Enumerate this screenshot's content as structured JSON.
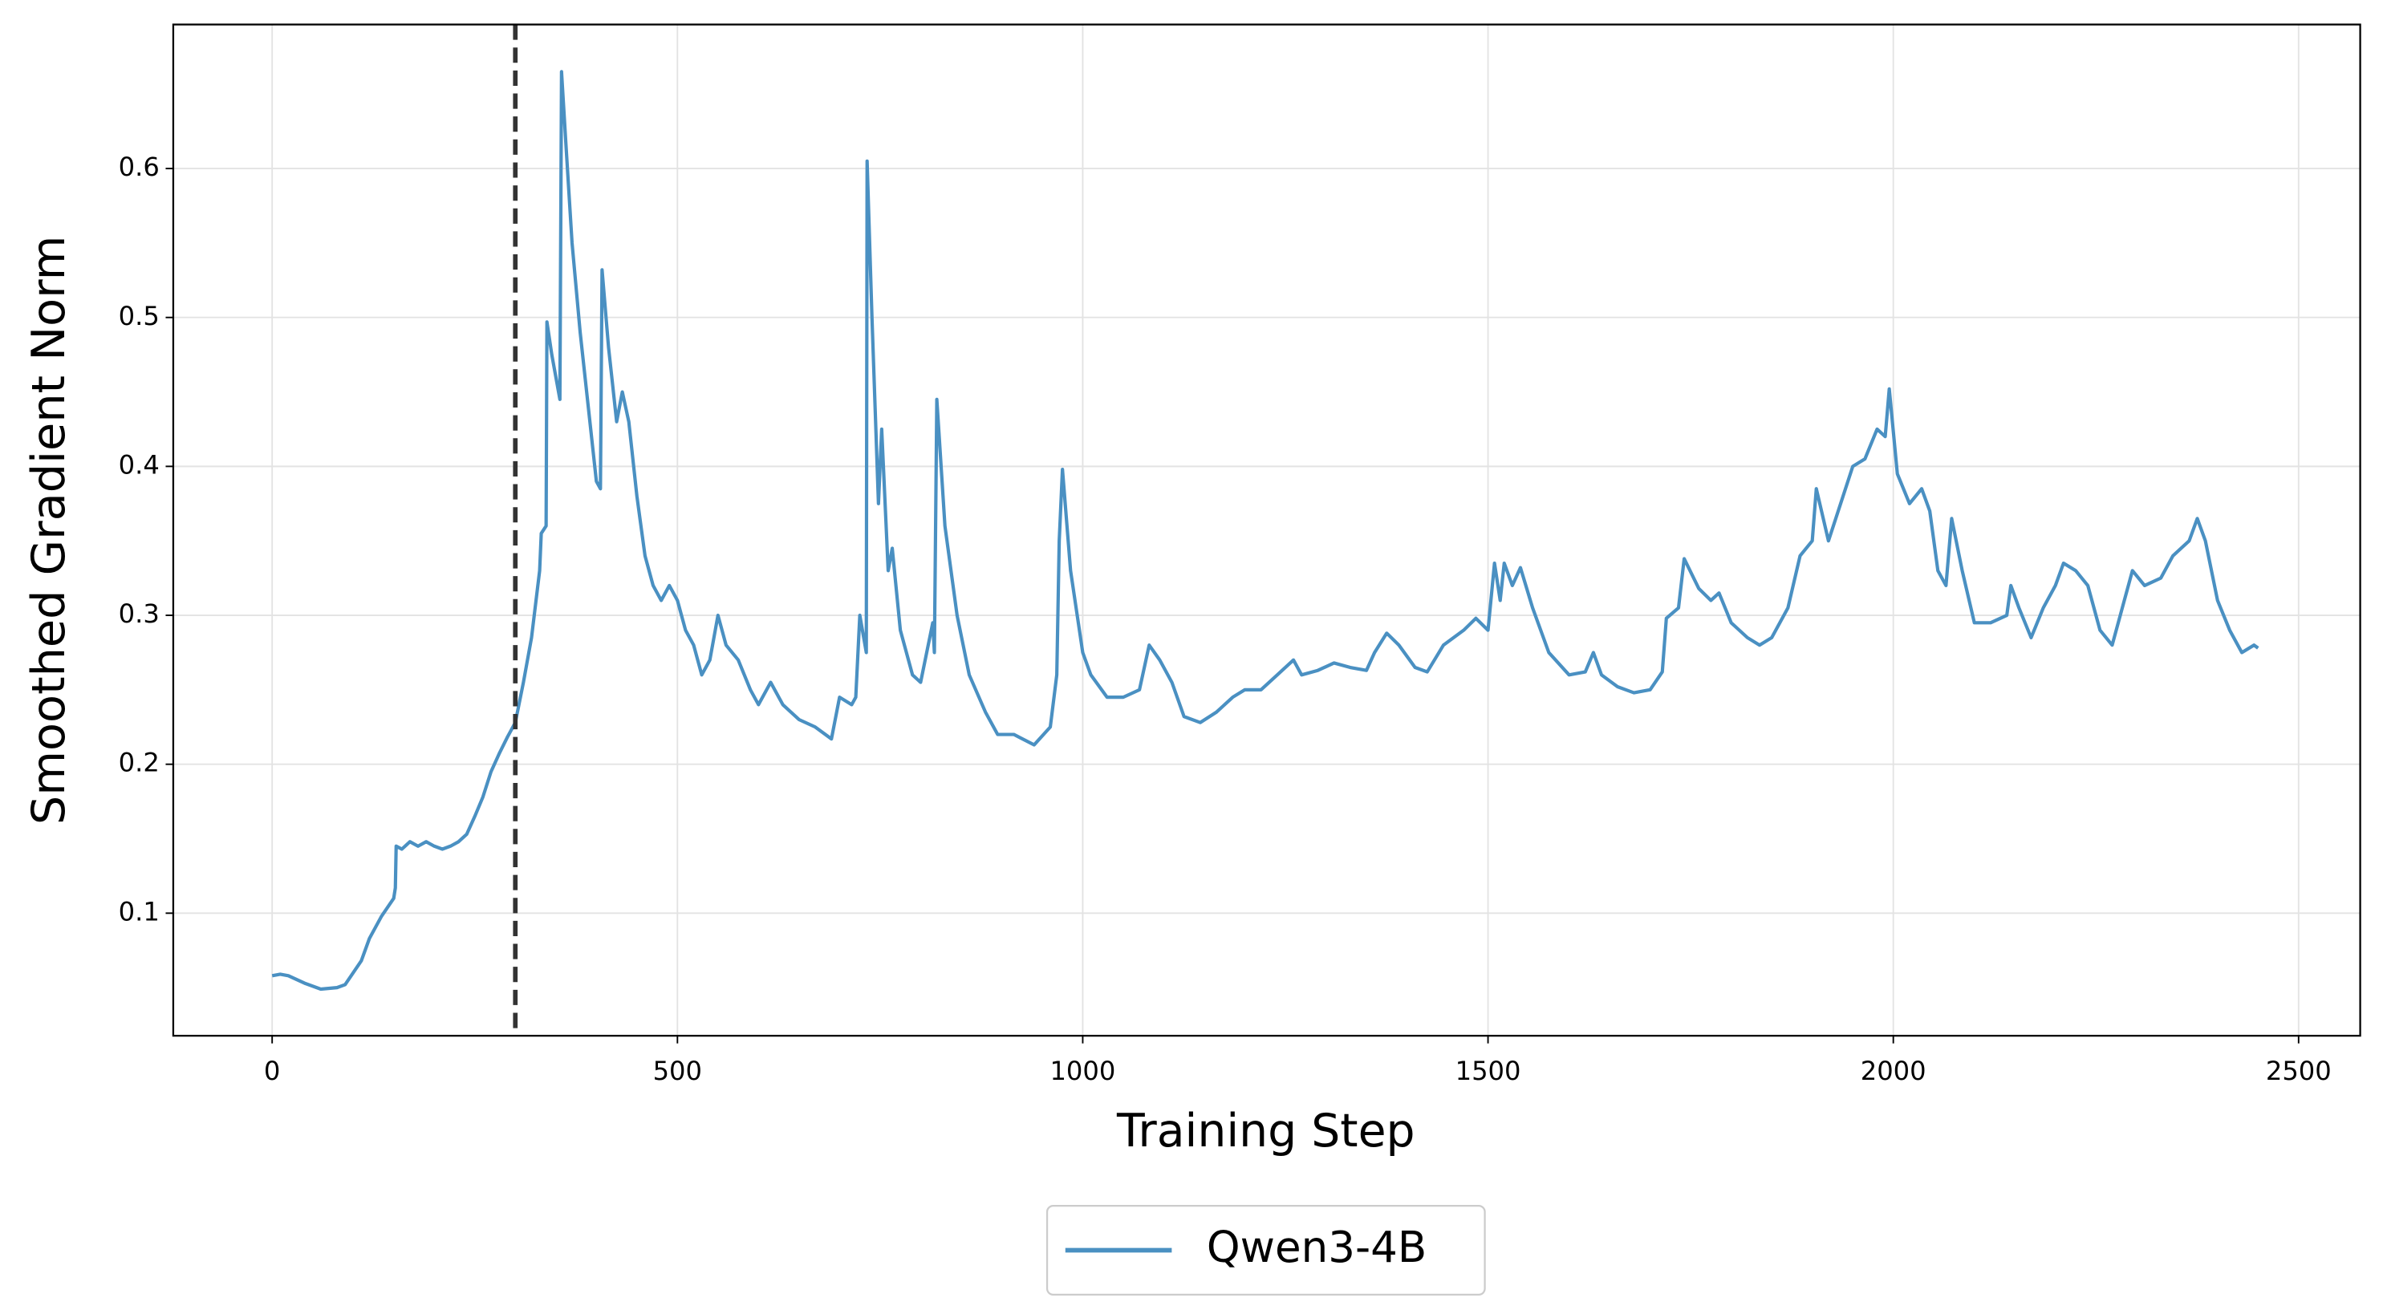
{
  "chart_data": {
    "type": "line",
    "x_label": "Training Step",
    "y_label": "Smoothed Gradient Norm",
    "xlim": [
      -122,
      2576
    ],
    "ylim": [
      0.0177,
      0.6967
    ],
    "xticks": [
      0,
      500,
      1000,
      1500,
      2000,
      2500
    ],
    "yticks": [
      0.1,
      0.2,
      0.3,
      0.4,
      0.5,
      0.6
    ],
    "grid": true,
    "legend": "below",
    "vlines": [
      300
    ],
    "x": [
      0,
      10,
      20,
      40,
      60,
      80,
      90,
      100,
      110,
      120,
      135,
      150,
      152,
      153,
      160,
      170,
      180,
      190,
      200,
      210,
      220,
      230,
      240,
      250,
      260,
      270,
      280,
      290,
      300,
      310,
      320,
      330,
      332,
      338,
      339,
      345,
      355,
      357,
      362,
      370,
      380,
      390,
      400,
      405,
      407,
      415,
      425,
      432,
      440,
      450,
      460,
      470,
      480,
      490,
      500,
      510,
      520,
      530,
      540,
      550,
      560,
      575,
      590,
      600,
      615,
      630,
      650,
      670,
      690,
      700,
      715,
      720,
      725,
      733,
      734,
      740,
      748,
      752,
      760,
      765,
      775,
      790,
      800,
      815,
      817,
      820,
      830,
      845,
      860,
      880,
      895,
      915,
      940,
      960,
      968,
      971,
      975,
      985,
      1000,
      1010,
      1030,
      1050,
      1070,
      1082,
      1095,
      1110,
      1125,
      1145,
      1165,
      1185,
      1200,
      1220,
      1240,
      1260,
      1270,
      1290,
      1310,
      1330,
      1350,
      1360,
      1375,
      1390,
      1410,
      1425,
      1445,
      1470,
      1485,
      1500,
      1508,
      1515,
      1520,
      1530,
      1540,
      1555,
      1575,
      1600,
      1620,
      1630,
      1640,
      1660,
      1680,
      1700,
      1715,
      1720,
      1735,
      1742,
      1760,
      1775,
      1785,
      1800,
      1820,
      1835,
      1850,
      1870,
      1885,
      1900,
      1905,
      1920,
      1935,
      1950,
      1965,
      1980,
      1990,
      1995,
      2005,
      2020,
      2035,
      2045,
      2055,
      2065,
      2072,
      2085,
      2100,
      2120,
      2140,
      2145,
      2155,
      2170,
      2185,
      2200,
      2210,
      2225,
      2240,
      2255,
      2270,
      2285,
      2295,
      2310,
      2330,
      2345,
      2365,
      2375,
      2385,
      2400,
      2415,
      2430,
      2445,
      2450
    ],
    "series": [
      {
        "name": "Qwen3-4B",
        "color": "#4a90c2",
        "values": [
          0.058,
          0.059,
          0.058,
          0.053,
          0.049,
          0.05,
          0.052,
          0.06,
          0.068,
          0.083,
          0.098,
          0.11,
          0.117,
          0.145,
          0.143,
          0.148,
          0.145,
          0.148,
          0.145,
          0.143,
          0.145,
          0.148,
          0.153,
          0.165,
          0.178,
          0.195,
          0.207,
          0.218,
          0.228,
          0.255,
          0.285,
          0.33,
          0.355,
          0.36,
          0.497,
          0.475,
          0.445,
          0.665,
          0.62,
          0.55,
          0.49,
          0.44,
          0.39,
          0.385,
          0.532,
          0.48,
          0.43,
          0.45,
          0.43,
          0.38,
          0.34,
          0.32,
          0.31,
          0.32,
          0.31,
          0.29,
          0.28,
          0.26,
          0.27,
          0.3,
          0.28,
          0.27,
          0.25,
          0.24,
          0.255,
          0.24,
          0.23,
          0.225,
          0.217,
          0.245,
          0.24,
          0.245,
          0.3,
          0.275,
          0.605,
          0.5,
          0.375,
          0.425,
          0.33,
          0.345,
          0.29,
          0.26,
          0.255,
          0.295,
          0.275,
          0.445,
          0.36,
          0.3,
          0.26,
          0.235,
          0.22,
          0.22,
          0.213,
          0.225,
          0.26,
          0.35,
          0.398,
          0.33,
          0.275,
          0.26,
          0.245,
          0.245,
          0.25,
          0.28,
          0.27,
          0.255,
          0.232,
          0.228,
          0.235,
          0.245,
          0.25,
          0.25,
          0.26,
          0.27,
          0.26,
          0.263,
          0.268,
          0.265,
          0.263,
          0.275,
          0.288,
          0.28,
          0.265,
          0.262,
          0.28,
          0.29,
          0.298,
          0.29,
          0.335,
          0.31,
          0.335,
          0.32,
          0.332,
          0.305,
          0.275,
          0.26,
          0.262,
          0.275,
          0.26,
          0.252,
          0.248,
          0.25,
          0.262,
          0.298,
          0.305,
          0.338,
          0.318,
          0.31,
          0.315,
          0.295,
          0.285,
          0.28,
          0.285,
          0.305,
          0.34,
          0.35,
          0.385,
          0.35,
          0.375,
          0.4,
          0.405,
          0.425,
          0.42,
          0.452,
          0.395,
          0.375,
          0.385,
          0.37,
          0.33,
          0.32,
          0.365,
          0.33,
          0.295,
          0.295,
          0.3,
          0.32,
          0.305,
          0.285,
          0.305,
          0.32,
          0.335,
          0.33,
          0.32,
          0.29,
          0.28,
          0.31,
          0.33,
          0.32,
          0.325,
          0.34,
          0.35,
          0.365,
          0.35,
          0.31,
          0.29,
          0.275,
          0.28,
          0.278
        ]
      }
    ]
  }
}
